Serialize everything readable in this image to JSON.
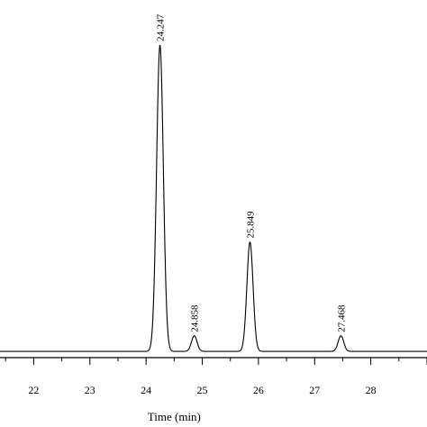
{
  "chart_data": {
    "type": "line",
    "xlabel": "Time (min)",
    "ylabel": "",
    "xlim": [
      21.4,
      29.0
    ],
    "ylim": [
      0,
      100
    ],
    "x_ticks": [
      "22",
      "23",
      "24",
      "25",
      "26",
      "27",
      "28"
    ],
    "grid": false,
    "legend": "none",
    "baseline": 2,
    "peaks": [
      {
        "retention_time": 24.247,
        "label": "24.247",
        "height": 100,
        "width": 0.06
      },
      {
        "retention_time": 24.858,
        "label": "24.858",
        "height": 7,
        "width": 0.05
      },
      {
        "retention_time": 25.849,
        "label": "25.849",
        "height": 37,
        "width": 0.055
      },
      {
        "retention_time": 27.468,
        "label": "27.468",
        "height": 7,
        "width": 0.05
      }
    ],
    "colors": {
      "trace": "#000000",
      "axis": "#000000"
    }
  }
}
